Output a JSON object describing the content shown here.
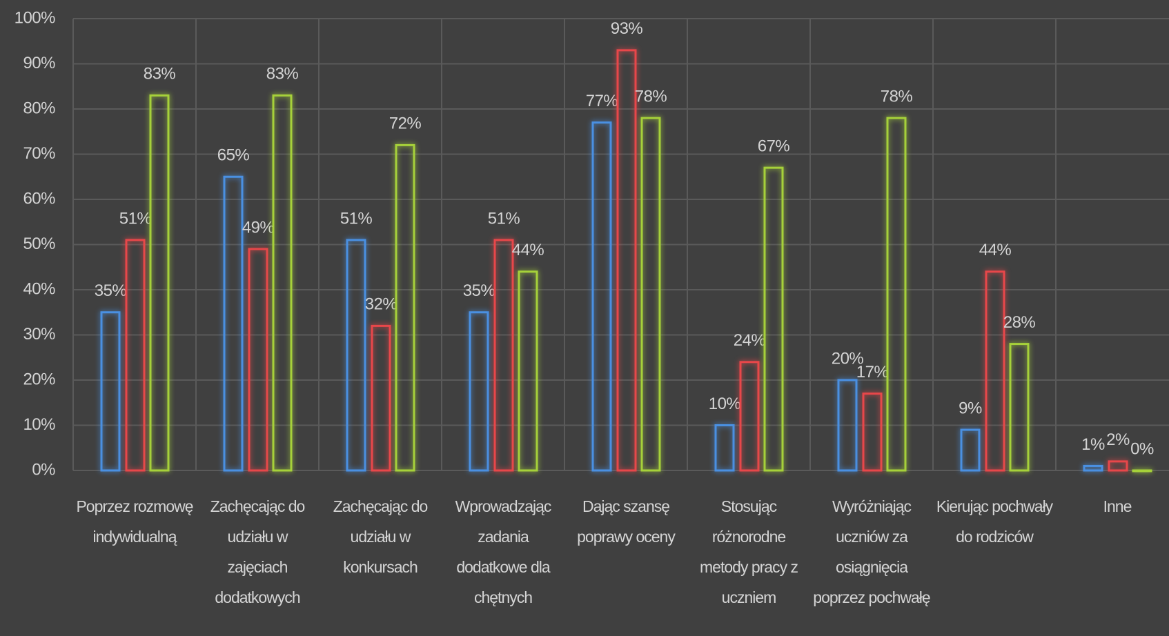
{
  "chart_data": {
    "type": "bar",
    "categories": [
      "Poprzez rozmowę indywidualną",
      "Zachęcając do udziału w zajęciach dodatkowych",
      "Zachęcając do udziału w konkursach",
      "Wprowadzając zadania dodatkowe dla chętnych",
      "Dając szansę poprawy oceny",
      "Stosując różnorodne metody pracy z uczniem",
      "Wyróżniając uczniów za osiągnięcia poprzez pochwałę",
      "Kierując pochwały do rodziców",
      "Inne"
    ],
    "series": [
      {
        "color": "#4a90e2",
        "values": [
          35,
          65,
          51,
          35,
          77,
          10,
          20,
          9,
          1
        ],
        "value_labels": [
          "35%",
          "65%",
          "51%",
          "35%",
          "77%",
          "10%",
          "20%",
          "9%",
          "1%"
        ]
      },
      {
        "color": "#e8474a",
        "values": [
          51,
          49,
          32,
          51,
          93,
          24,
          17,
          44,
          2
        ],
        "value_labels": [
          "51%",
          "49%",
          "32%",
          "51%",
          "93%",
          "24%",
          "17%",
          "44%",
          "2%"
        ]
      },
      {
        "color": "#a6d13a",
        "values": [
          83,
          83,
          72,
          44,
          78,
          67,
          78,
          28,
          0
        ],
        "value_labels": [
          "83%",
          "83%",
          "72%",
          "44%",
          "78%",
          "67%",
          "78%",
          "28%",
          "0%"
        ]
      }
    ],
    "ylim": [
      0,
      100
    ],
    "yticks": [
      {
        "value": 0,
        "label": "0%"
      },
      {
        "value": 10,
        "label": "10%"
      },
      {
        "value": 20,
        "label": "20%"
      },
      {
        "value": 30,
        "label": "30%"
      },
      {
        "value": 40,
        "label": "40%"
      },
      {
        "value": 50,
        "label": "50%"
      },
      {
        "value": 60,
        "label": "60%"
      },
      {
        "value": 70,
        "label": "70%"
      },
      {
        "value": 80,
        "label": "80%"
      },
      {
        "value": 90,
        "label": "90%"
      },
      {
        "value": 100,
        "label": "100%"
      }
    ],
    "grid": true
  }
}
